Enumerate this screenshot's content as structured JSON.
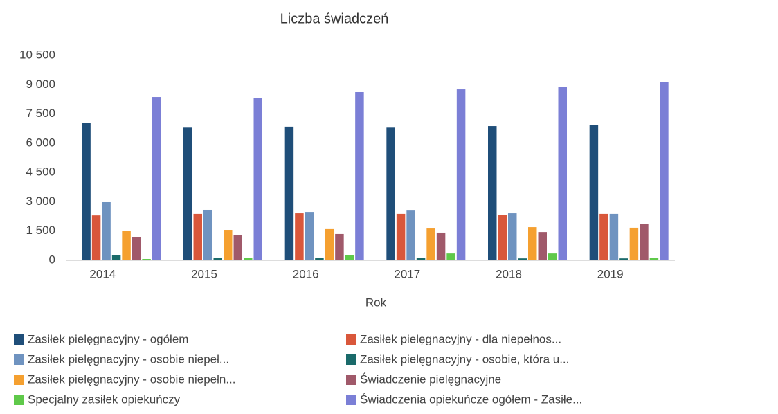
{
  "chart_data": {
    "type": "bar",
    "title": "Liczba świadczeń",
    "x_label": "Rok",
    "categories": [
      "2014",
      "2015",
      "2016",
      "2017",
      "2018",
      "2019"
    ],
    "ylim": [
      0,
      10500
    ],
    "yticks": [
      0,
      {
        "value": 1500,
        "label": "1 500"
      },
      {
        "value": 3000,
        "label": "3 000"
      },
      {
        "value": 4500,
        "label": "4 500"
      },
      {
        "value": 6000,
        "label": "6 000"
      },
      {
        "value": 7500,
        "label": "7 500"
      },
      {
        "value": 9000,
        "label": "9 000"
      },
      {
        "value": 10500,
        "label": "10 500"
      }
    ],
    "grid": false,
    "legend": "bottom",
    "series": [
      {
        "name": "Zasiłek pielęgnacyjny - ogółem",
        "color": "#1f4e79",
        "values": [
          7050,
          6800,
          6850,
          6800,
          6880,
          6920
        ]
      },
      {
        "name": "Zasiłek pielęgnacyjny - dla niepełnos...",
        "color": "#d9573b",
        "values": [
          2300,
          2380,
          2410,
          2380,
          2340,
          2380
        ]
      },
      {
        "name": "Zasiłek pielęgnacyjny - osobie niepeł...",
        "color": "#6f93c0",
        "values": [
          2980,
          2590,
          2480,
          2550,
          2410,
          2380
        ]
      },
      {
        "name": "Zasiłek pielęgnacyjny - osobie, która u...",
        "color": "#1a6a6a",
        "values": [
          250,
          140,
          110,
          110,
          100,
          100
        ]
      },
      {
        "name": "Zasiłek pielęgnacyjny -  osobie niepełn...",
        "color": "#f5a030",
        "values": [
          1520,
          1560,
          1600,
          1630,
          1700,
          1670
        ]
      },
      {
        "name": "Świadczenie pielęgnacyjne",
        "color": "#a0596a",
        "values": [
          1200,
          1310,
          1350,
          1420,
          1450,
          1880
        ]
      },
      {
        "name": "Specjalny zasiłek opiekuńczy",
        "color": "#5fc94a",
        "values": [
          70,
          140,
          250,
          350,
          350,
          140
        ]
      },
      {
        "name": "Świadczenia opiekuńcze ogółem - Zasiłe...",
        "color": "#7b7fd6",
        "values": [
          8370,
          8330,
          8620,
          8760,
          8900,
          9150
        ]
      }
    ]
  }
}
